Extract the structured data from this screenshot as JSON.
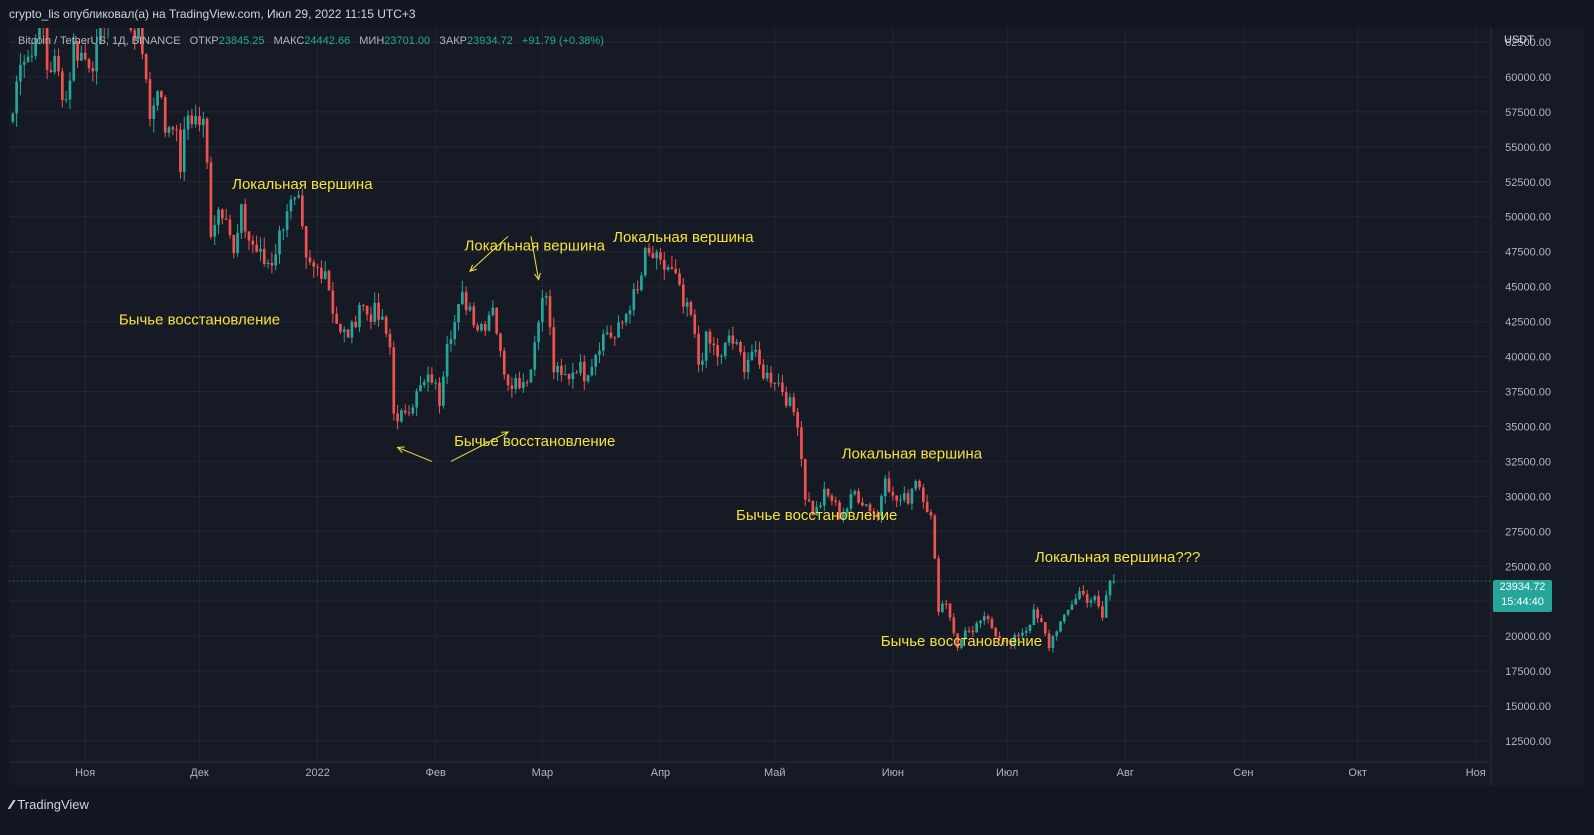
{
  "header": {
    "published_line": "crypto_lis опубликовал(а) на TradingView.com, Июл 29, 2022 11:15 UTC+3"
  },
  "symbol": {
    "name": "Bitcoin / TetherUS, 1Д, BINANCE",
    "open_label": "ОТКР",
    "open_value": "23845.25",
    "high_label": "МАКС",
    "high_value": "24442.66",
    "low_label": "МИН",
    "low_value": "23701.00",
    "close_label": "ЗАКР",
    "close_value": "23934.72",
    "change": "+91.79 (+0.38%)"
  },
  "price_axis": {
    "currency": "USDT",
    "ticks": [
      "62500.00",
      "60000.00",
      "57500.00",
      "55000.00",
      "52500.00",
      "50000.00",
      "47500.00",
      "45000.00",
      "42500.00",
      "40000.00",
      "37500.00",
      "35000.00",
      "32500.00",
      "30000.00",
      "27500.00",
      "25000.00",
      "22500.00",
      "20000.00",
      "17500.00",
      "15000.00",
      "12500.00"
    ]
  },
  "current_price": {
    "value": "23934.72",
    "countdown": "15:44:40"
  },
  "footer": {
    "brand": "TradingView"
  },
  "colors": {
    "background": "#161a25",
    "up": "#26a69a",
    "down": "#ef5350",
    "annotation": "#f6e23a",
    "grid": "#232632"
  },
  "chart_data": {
    "type": "candlestick",
    "title": "Bitcoin / TetherUS, 1Д, BINANCE",
    "x_tick_labels": [
      {
        "label": "Ноя",
        "date": "2021-11-01"
      },
      {
        "label": "Дек",
        "date": "2021-12-01"
      },
      {
        "label": "2022",
        "date": "2022-01-01"
      },
      {
        "label": "Фев",
        "date": "2022-02-01"
      },
      {
        "label": "Мар",
        "date": "2022-03-01"
      },
      {
        "label": "Апр",
        "date": "2022-04-01"
      },
      {
        "label": "Май",
        "date": "2022-05-01"
      },
      {
        "label": "Июн",
        "date": "2022-06-01"
      },
      {
        "label": "Июл",
        "date": "2022-07-01"
      },
      {
        "label": "Авг",
        "date": "2022-08-01"
      },
      {
        "label": "Сен",
        "date": "2022-09-01"
      },
      {
        "label": "Окт",
        "date": "2022-10-01"
      },
      {
        "label": "Ноя",
        "date": "2022-11-01"
      }
    ],
    "x_range": [
      "2021-10-12",
      "2022-11-05"
    ],
    "y_range": [
      11000,
      63500
    ],
    "grid": true,
    "current_price_line": 23934.72,
    "approx_daily_close": [
      [
        "2021-10-13",
        57400
      ],
      [
        "2021-10-15",
        61700
      ],
      [
        "2021-10-18",
        61500
      ],
      [
        "2021-10-20",
        65900
      ],
      [
        "2021-10-22",
        60700
      ],
      [
        "2021-10-24",
        60900
      ],
      [
        "2021-10-27",
        58400
      ],
      [
        "2021-10-29",
        62200
      ],
      [
        "2021-11-01",
        61300
      ],
      [
        "2021-11-04",
        61400
      ],
      [
        "2021-11-08",
        67500
      ],
      [
        "2021-11-10",
        64900
      ],
      [
        "2021-11-12",
        64200
      ],
      [
        "2021-11-15",
        63100
      ],
      [
        "2021-11-17",
        60400
      ],
      [
        "2021-11-18",
        56900
      ],
      [
        "2021-11-20",
        59700
      ],
      [
        "2021-11-22",
        56300
      ],
      [
        "2021-11-24",
        57100
      ],
      [
        "2021-11-26",
        53700
      ],
      [
        "2021-11-28",
        57300
      ],
      [
        "2021-11-30",
        57000
      ],
      [
        "2021-12-02",
        56500
      ],
      [
        "2021-12-03",
        53600
      ],
      [
        "2021-12-04",
        49200
      ],
      [
        "2021-12-06",
        50600
      ],
      [
        "2021-12-08",
        50600
      ],
      [
        "2021-12-10",
        47100
      ],
      [
        "2021-12-12",
        50100
      ],
      [
        "2021-12-14",
        48400
      ],
      [
        "2021-12-16",
        47600
      ],
      [
        "2021-12-18",
        46700
      ],
      [
        "2021-12-20",
        46900
      ],
      [
        "2021-12-22",
        48600
      ],
      [
        "2021-12-24",
        50800
      ],
      [
        "2021-12-27",
        50700
      ],
      [
        "2021-12-29",
        46500
      ],
      [
        "2021-12-31",
        46200
      ],
      [
        "2022-01-03",
        46400
      ],
      [
        "2022-01-05",
        43500
      ],
      [
        "2022-01-07",
        41500
      ],
      [
        "2022-01-10",
        41800
      ],
      [
        "2022-01-12",
        43900
      ],
      [
        "2022-01-14",
        43100
      ],
      [
        "2022-01-16",
        43100
      ],
      [
        "2022-01-18",
        42300
      ],
      [
        "2022-01-20",
        40700
      ],
      [
        "2022-01-21",
        36400
      ],
      [
        "2022-01-22",
        35000
      ],
      [
        "2022-01-24",
        36300
      ],
      [
        "2022-01-26",
        36800
      ],
      [
        "2022-01-28",
        37700
      ],
      [
        "2022-01-31",
        38500
      ],
      [
        "2022-02-02",
        36900
      ],
      [
        "2022-02-04",
        41500
      ],
      [
        "2022-02-06",
        42400
      ],
      [
        "2022-02-08",
        44100
      ],
      [
        "2022-02-10",
        43600
      ],
      [
        "2022-02-12",
        42200
      ],
      [
        "2022-02-14",
        42500
      ],
      [
        "2022-02-16",
        43900
      ],
      [
        "2022-02-18",
        40000
      ],
      [
        "2022-02-20",
        38400
      ],
      [
        "2022-02-22",
        38300
      ],
      [
        "2022-02-24",
        38300
      ],
      [
        "2022-02-26",
        39100
      ],
      [
        "2022-02-28",
        43200
      ],
      [
        "2022-03-02",
        44400
      ],
      [
        "2022-03-04",
        39100
      ],
      [
        "2022-03-06",
        38400
      ],
      [
        "2022-03-08",
        38700
      ],
      [
        "2022-03-10",
        39400
      ],
      [
        "2022-03-12",
        38800
      ],
      [
        "2022-03-14",
        39700
      ],
      [
        "2022-03-16",
        41100
      ],
      [
        "2022-03-18",
        41800
      ],
      [
        "2022-03-20",
        41300
      ],
      [
        "2022-03-22",
        42400
      ],
      [
        "2022-03-24",
        43900
      ],
      [
        "2022-03-26",
        44500
      ],
      [
        "2022-03-28",
        47100
      ],
      [
        "2022-03-30",
        47100
      ],
      [
        "2022-04-01",
        46300
      ],
      [
        "2022-04-03",
        46400
      ],
      [
        "2022-04-05",
        45500
      ],
      [
        "2022-04-07",
        43500
      ],
      [
        "2022-04-09",
        42800
      ],
      [
        "2022-04-11",
        39500
      ],
      [
        "2022-04-13",
        41100
      ],
      [
        "2022-04-15",
        40600
      ],
      [
        "2022-04-17",
        39700
      ],
      [
        "2022-04-19",
        41500
      ],
      [
        "2022-04-21",
        40500
      ],
      [
        "2022-04-23",
        39500
      ],
      [
        "2022-04-25",
        40400
      ],
      [
        "2022-04-27",
        39200
      ],
      [
        "2022-04-29",
        38600
      ],
      [
        "2022-05-01",
        38500
      ],
      [
        "2022-05-03",
        37700
      ],
      [
        "2022-05-05",
        36500
      ],
      [
        "2022-05-07",
        35500
      ],
      [
        "2022-05-09",
        30100
      ],
      [
        "2022-05-11",
        28900
      ],
      [
        "2022-05-12",
        29000
      ],
      [
        "2022-05-14",
        30100
      ],
      [
        "2022-05-16",
        29800
      ],
      [
        "2022-05-18",
        28700
      ],
      [
        "2022-05-20",
        29200
      ],
      [
        "2022-05-22",
        30300
      ],
      [
        "2022-05-24",
        29700
      ],
      [
        "2022-05-26",
        29200
      ],
      [
        "2022-05-28",
        28600
      ],
      [
        "2022-05-30",
        31800
      ],
      [
        "2022-06-01",
        29800
      ],
      [
        "2022-06-03",
        29700
      ],
      [
        "2022-06-05",
        29900
      ],
      [
        "2022-06-07",
        31400
      ],
      [
        "2022-06-09",
        30100
      ],
      [
        "2022-06-11",
        28400
      ],
      [
        "2022-06-13",
        22100
      ],
      [
        "2022-06-15",
        22500
      ],
      [
        "2022-06-17",
        20400
      ],
      [
        "2022-06-18",
        19000
      ],
      [
        "2022-06-20",
        20600
      ],
      [
        "2022-06-22",
        20000
      ],
      [
        "2022-06-24",
        21200
      ],
      [
        "2022-06-26",
        21000
      ],
      [
        "2022-06-28",
        20300
      ],
      [
        "2022-06-30",
        19800
      ],
      [
        "2022-07-02",
        19300
      ],
      [
        "2022-07-04",
        20200
      ],
      [
        "2022-07-06",
        20500
      ],
      [
        "2022-07-08",
        21600
      ],
      [
        "2022-07-10",
        20800
      ],
      [
        "2022-07-12",
        19300
      ],
      [
        "2022-07-14",
        20600
      ],
      [
        "2022-07-16",
        21200
      ],
      [
        "2022-07-18",
        22400
      ],
      [
        "2022-07-20",
        23200
      ],
      [
        "2022-07-22",
        22700
      ],
      [
        "2022-07-24",
        22600
      ],
      [
        "2022-07-26",
        21300
      ],
      [
        "2022-07-27",
        22900
      ],
      [
        "2022-07-28",
        23900
      ],
      [
        "2022-07-29",
        23935
      ]
    ],
    "annotations": [
      {
        "text": "Локальная вершина",
        "date": "2021-12-28",
        "price": 52000
      },
      {
        "text": "Бычье восстановление",
        "date": "2021-12-01",
        "price": 42300
      },
      {
        "text": "Локальная вершина",
        "date": "2022-02-27",
        "price": 47600
      },
      {
        "text": "Бычье восстановление",
        "date": "2022-02-27",
        "price": 33600
      },
      {
        "text": "Локальная вершина",
        "date": "2022-04-07",
        "price": 48200
      },
      {
        "text": "Локальная вершина",
        "date": "2022-06-06",
        "price": 32700
      },
      {
        "text": "Бычье восстановление",
        "date": "2022-05-12",
        "price": 28300
      },
      {
        "text": "Бычье восстановление",
        "date": "2022-06-19",
        "price": 19300
      },
      {
        "text": "Локальная вершина???",
        "date": "2022-07-30",
        "price": 25300
      }
    ]
  }
}
